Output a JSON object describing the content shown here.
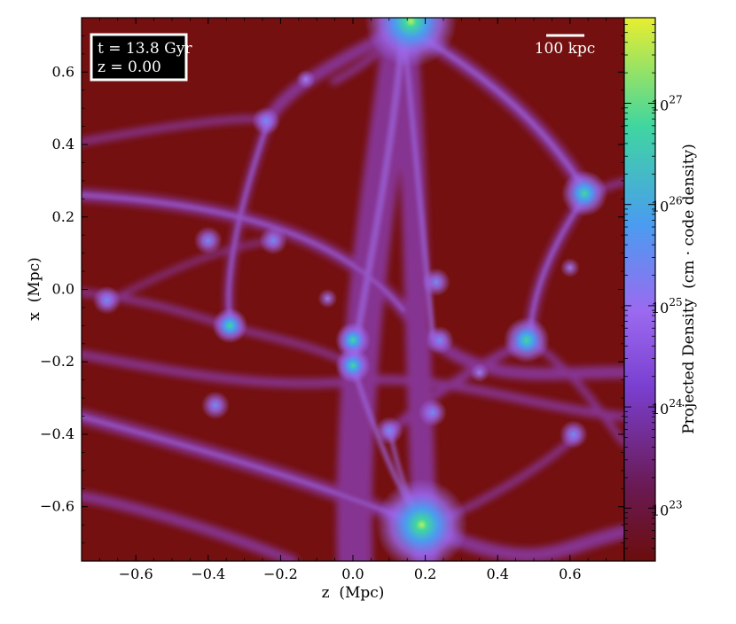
{
  "chart_data": {
    "type": "heatmap",
    "xlabel": "z  (Mpc)",
    "ylabel": "x  (Mpc)",
    "xlim": [
      -0.75,
      0.75
    ],
    "ylim": [
      -0.75,
      0.75
    ],
    "xticks": [
      -0.6,
      -0.4,
      -0.2,
      0.0,
      0.2,
      0.4,
      0.6
    ],
    "xtick_labels": [
      "−0.6",
      "−0.4",
      "−0.2",
      "0.0",
      "0.2",
      "0.4",
      "0.6"
    ],
    "yticks": [
      0.6,
      0.4,
      0.2,
      0.0,
      -0.2,
      -0.4,
      -0.6
    ],
    "ytick_labels": [
      "0.6",
      "0.4",
      "0.2",
      "0.0",
      "−0.2",
      "−0.4",
      "−0.6"
    ],
    "colorbar": {
      "label": "Projected Density  (cm · code density)",
      "scale": "log",
      "range": [
        3e+22,
        7e+27
      ],
      "ticks": [
        1e+23,
        1e+24,
        1e+25,
        1e+26,
        1e+27
      ],
      "tick_mantissa": "10",
      "tick_exponents": [
        "23",
        "24",
        "25",
        "26",
        "27"
      ],
      "colormap": [
        "#6b0d0d",
        "#6a1a55",
        "#7a3fd0",
        "#9b6af0",
        "#4a9cf0",
        "#3fd6a0",
        "#e8ee2f"
      ]
    },
    "annotations": {
      "time_line1": "t = 13.8 Gyr",
      "time_line2": "z = 0.00",
      "scale_bar": "100 kpc"
    },
    "grid": false,
    "halos": [
      {
        "z": 0.16,
        "x": 0.74,
        "density": 5e+26
      },
      {
        "z": 0.19,
        "x": -0.65,
        "density": 1e+26
      },
      {
        "z": 0.64,
        "x": 0.265,
        "density": 2e+25
      },
      {
        "z": 0.48,
        "x": -0.14,
        "density": 1.5e+25
      },
      {
        "z": 0.0,
        "x": -0.14,
        "density": 6e+24
      },
      {
        "z": 0.0,
        "x": -0.21,
        "density": 8e+24
      },
      {
        "z": -0.34,
        "x": -0.1,
        "density": 5e+24
      },
      {
        "z": -0.24,
        "x": 0.465,
        "density": 3e+24
      },
      {
        "z": 0.1,
        "x": -0.39,
        "density": 3e+24
      },
      {
        "z": 0.22,
        "x": -0.34,
        "density": 2e+24
      },
      {
        "z": 0.61,
        "x": -0.4,
        "density": 2e+24
      },
      {
        "z": -0.38,
        "x": -0.32,
        "density": 1.5e+24
      },
      {
        "z": -0.4,
        "x": 0.135,
        "density": 1e+24
      },
      {
        "z": -0.22,
        "x": 0.135,
        "density": 1e+24
      },
      {
        "z": -0.68,
        "x": -0.03,
        "density": 1e+24
      },
      {
        "z": 0.24,
        "x": -0.14,
        "density": 1e+24
      },
      {
        "z": 0.23,
        "x": 0.02,
        "density": 1e+24
      },
      {
        "z": -0.07,
        "x": -0.025,
        "density": 8e+23
      },
      {
        "z": -0.13,
        "x": 0.58,
        "density": 8e+23
      },
      {
        "z": 0.35,
        "x": -0.23,
        "density": 8e+23
      },
      {
        "z": 0.6,
        "x": 0.06,
        "density": 8e+23
      }
    ]
  }
}
